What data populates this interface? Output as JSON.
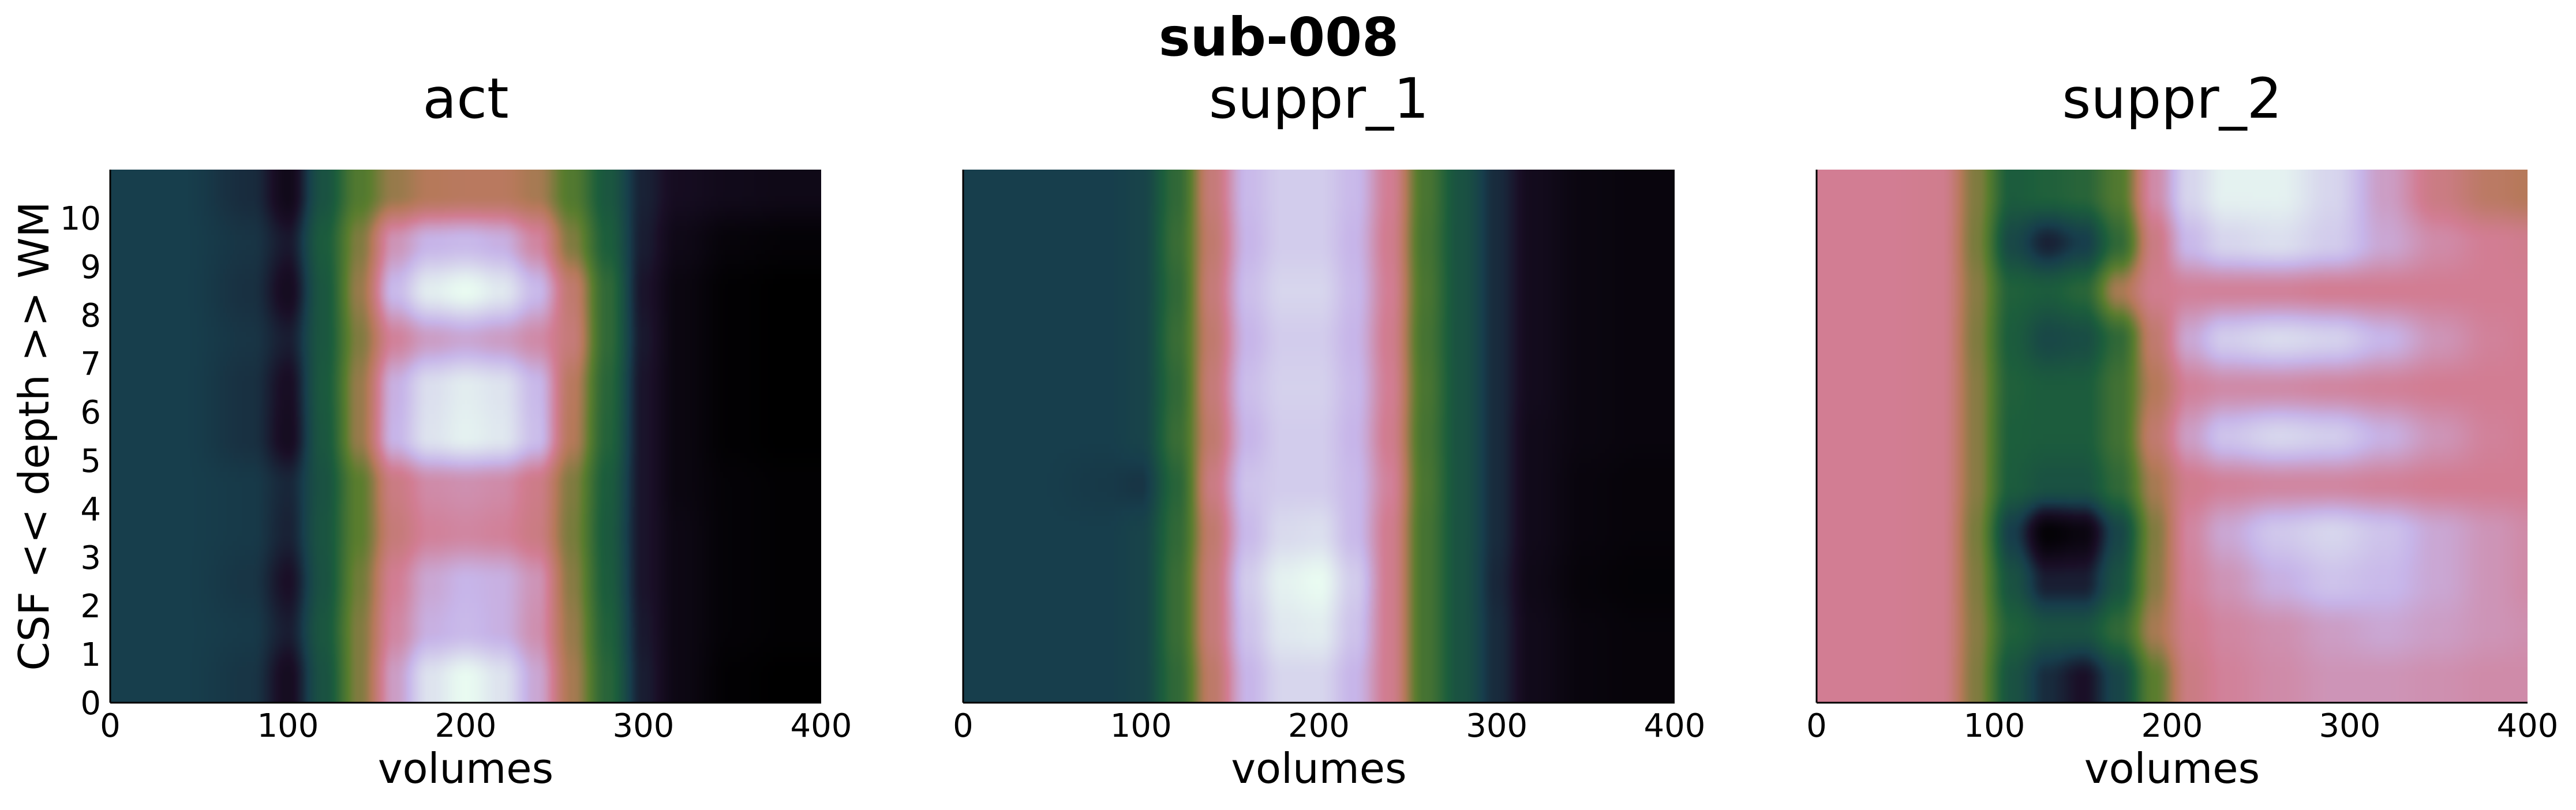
{
  "figure": {
    "suptitle": "sub-008"
  },
  "colors": {
    "background": "#ffffff",
    "axis": "#000000",
    "colormap_name": "cubehelix",
    "colormap_stops": [
      {
        "t": 0.0,
        "color": "#000000"
      },
      {
        "t": 0.12,
        "color": "#1a0f27"
      },
      {
        "t": 0.22,
        "color": "#173e4c"
      },
      {
        "t": 0.35,
        "color": "#1c5e3c"
      },
      {
        "t": 0.5,
        "color": "#5a7d2e"
      },
      {
        "t": 0.62,
        "color": "#b6795a"
      },
      {
        "t": 0.73,
        "color": "#d27d93"
      },
      {
        "t": 0.85,
        "color": "#c7b5e9"
      },
      {
        "t": 1.0,
        "color": "#e9fbf1"
      }
    ]
  },
  "chart_data": [
    {
      "type": "heatmap",
      "title": "act",
      "xlabel": "volumes",
      "ylabel": "CSF << depth >> WM",
      "xlim": [
        0,
        400
      ],
      "ylim": [
        0,
        11
      ],
      "xticks": [
        0,
        100,
        200,
        300,
        400
      ],
      "yticks": [
        0,
        1,
        2,
        3,
        4,
        5,
        6,
        7,
        8,
        9,
        10
      ],
      "x": [
        0,
        40,
        80,
        100,
        120,
        140,
        160,
        180,
        200,
        220,
        240,
        260,
        280,
        300,
        320,
        350,
        380,
        400
      ],
      "depth_rows": [
        {
          "depth": 0.5,
          "values": [
            0.22,
            0.22,
            0.2,
            0.1,
            0.3,
            0.55,
            0.8,
            0.95,
            1.0,
            0.95,
            0.82,
            0.6,
            0.38,
            0.15,
            0.06,
            0.01,
            0.0,
            0.0
          ]
        },
        {
          "depth": 1.5,
          "values": [
            0.22,
            0.22,
            0.21,
            0.15,
            0.32,
            0.55,
            0.75,
            0.84,
            0.86,
            0.84,
            0.77,
            0.58,
            0.36,
            0.14,
            0.06,
            0.02,
            0.01,
            0.01
          ]
        },
        {
          "depth": 2.5,
          "values": [
            0.22,
            0.22,
            0.2,
            0.12,
            0.3,
            0.53,
            0.73,
            0.82,
            0.85,
            0.84,
            0.78,
            0.56,
            0.34,
            0.13,
            0.06,
            0.02,
            0.01,
            0.01
          ]
        },
        {
          "depth": 3.5,
          "values": [
            0.22,
            0.22,
            0.21,
            0.16,
            0.31,
            0.5,
            0.68,
            0.74,
            0.75,
            0.74,
            0.7,
            0.54,
            0.33,
            0.13,
            0.06,
            0.02,
            0.01,
            0.01
          ]
        },
        {
          "depth": 4.5,
          "values": [
            0.22,
            0.22,
            0.21,
            0.17,
            0.3,
            0.5,
            0.7,
            0.76,
            0.77,
            0.76,
            0.71,
            0.55,
            0.34,
            0.13,
            0.05,
            0.02,
            0.01,
            0.01
          ]
        },
        {
          "depth": 5.5,
          "values": [
            0.22,
            0.22,
            0.19,
            0.1,
            0.32,
            0.58,
            0.85,
            0.95,
            0.98,
            0.96,
            0.87,
            0.62,
            0.37,
            0.13,
            0.05,
            0.01,
            0.0,
            0.0
          ]
        },
        {
          "depth": 6.5,
          "values": [
            0.22,
            0.22,
            0.19,
            0.11,
            0.33,
            0.58,
            0.84,
            0.94,
            0.97,
            0.95,
            0.86,
            0.63,
            0.38,
            0.13,
            0.05,
            0.01,
            0.0,
            0.0
          ]
        },
        {
          "depth": 7.5,
          "values": [
            0.22,
            0.22,
            0.2,
            0.15,
            0.32,
            0.55,
            0.74,
            0.8,
            0.82,
            0.8,
            0.76,
            0.68,
            0.4,
            0.14,
            0.05,
            0.01,
            0.0,
            0.0
          ]
        },
        {
          "depth": 8.5,
          "values": [
            0.22,
            0.22,
            0.19,
            0.1,
            0.32,
            0.58,
            0.86,
            0.97,
            1.0,
            0.96,
            0.86,
            0.66,
            0.4,
            0.13,
            0.05,
            0.01,
            0.0,
            0.0
          ]
        },
        {
          "depth": 9.5,
          "values": [
            0.22,
            0.22,
            0.2,
            0.14,
            0.34,
            0.55,
            0.78,
            0.85,
            0.86,
            0.84,
            0.75,
            0.55,
            0.35,
            0.15,
            0.07,
            0.03,
            0.02,
            0.02
          ]
        },
        {
          "depth": 10.5,
          "values": [
            0.22,
            0.22,
            0.18,
            0.08,
            0.3,
            0.48,
            0.58,
            0.62,
            0.63,
            0.63,
            0.6,
            0.48,
            0.32,
            0.16,
            0.1,
            0.08,
            0.07,
            0.07
          ]
        }
      ]
    },
    {
      "type": "heatmap",
      "title": "suppr_1",
      "xlabel": "volumes",
      "ylabel": "",
      "xlim": [
        0,
        400
      ],
      "ylim": [
        0,
        11
      ],
      "xticks": [
        0,
        100,
        200,
        300,
        400
      ],
      "yticks": [],
      "x": [
        0,
        40,
        80,
        100,
        120,
        140,
        160,
        180,
        200,
        220,
        240,
        260,
        280,
        300,
        320,
        350,
        380,
        400
      ],
      "depth_rows": [
        {
          "depth": 0.5,
          "values": [
            0.22,
            0.22,
            0.22,
            0.24,
            0.4,
            0.65,
            0.85,
            0.92,
            0.92,
            0.85,
            0.72,
            0.45,
            0.3,
            0.18,
            0.08,
            0.04,
            0.03,
            0.03
          ]
        },
        {
          "depth": 1.5,
          "values": [
            0.22,
            0.22,
            0.22,
            0.24,
            0.42,
            0.68,
            0.88,
            0.96,
            0.97,
            0.88,
            0.72,
            0.45,
            0.3,
            0.18,
            0.08,
            0.04,
            0.03,
            0.03
          ]
        },
        {
          "depth": 2.5,
          "values": [
            0.22,
            0.22,
            0.22,
            0.24,
            0.42,
            0.68,
            0.9,
            0.98,
            1.0,
            0.9,
            0.72,
            0.45,
            0.3,
            0.17,
            0.07,
            0.03,
            0.02,
            0.02
          ]
        },
        {
          "depth": 3.5,
          "values": [
            0.22,
            0.22,
            0.22,
            0.24,
            0.4,
            0.66,
            0.86,
            0.93,
            0.94,
            0.86,
            0.72,
            0.45,
            0.3,
            0.18,
            0.08,
            0.04,
            0.03,
            0.03
          ]
        },
        {
          "depth": 4.5,
          "values": [
            0.22,
            0.22,
            0.21,
            0.2,
            0.38,
            0.7,
            0.88,
            0.9,
            0.9,
            0.86,
            0.74,
            0.46,
            0.3,
            0.18,
            0.08,
            0.04,
            0.03,
            0.03
          ]
        },
        {
          "depth": 5.5,
          "values": [
            0.22,
            0.22,
            0.22,
            0.24,
            0.42,
            0.66,
            0.85,
            0.9,
            0.9,
            0.85,
            0.72,
            0.45,
            0.3,
            0.18,
            0.08,
            0.05,
            0.04,
            0.04
          ]
        },
        {
          "depth": 6.5,
          "values": [
            0.22,
            0.22,
            0.22,
            0.24,
            0.4,
            0.68,
            0.87,
            0.91,
            0.91,
            0.86,
            0.73,
            0.46,
            0.3,
            0.18,
            0.09,
            0.05,
            0.04,
            0.04
          ]
        },
        {
          "depth": 7.5,
          "values": [
            0.22,
            0.22,
            0.22,
            0.24,
            0.42,
            0.66,
            0.85,
            0.9,
            0.9,
            0.85,
            0.72,
            0.45,
            0.3,
            0.18,
            0.09,
            0.05,
            0.04,
            0.04
          ]
        },
        {
          "depth": 8.5,
          "values": [
            0.22,
            0.22,
            0.22,
            0.24,
            0.4,
            0.68,
            0.87,
            0.92,
            0.92,
            0.86,
            0.73,
            0.46,
            0.3,
            0.18,
            0.09,
            0.05,
            0.04,
            0.04
          ]
        },
        {
          "depth": 9.5,
          "values": [
            0.22,
            0.22,
            0.22,
            0.24,
            0.42,
            0.66,
            0.85,
            0.9,
            0.9,
            0.85,
            0.72,
            0.45,
            0.3,
            0.18,
            0.09,
            0.05,
            0.04,
            0.04
          ]
        },
        {
          "depth": 10.5,
          "values": [
            0.22,
            0.22,
            0.22,
            0.24,
            0.4,
            0.68,
            0.86,
            0.9,
            0.9,
            0.86,
            0.73,
            0.46,
            0.3,
            0.18,
            0.09,
            0.05,
            0.04,
            0.04
          ]
        }
      ]
    },
    {
      "type": "heatmap",
      "title": "suppr_2",
      "xlabel": "volumes",
      "ylabel": "",
      "xlim": [
        0,
        400
      ],
      "ylim": [
        0,
        11
      ],
      "xticks": [
        0,
        100,
        200,
        300,
        400
      ],
      "yticks": [],
      "x": [
        0,
        40,
        70,
        90,
        110,
        130,
        150,
        170,
        190,
        210,
        230,
        260,
        290,
        320,
        350,
        380,
        400
      ],
      "depth_rows": [
        {
          "depth": 0.5,
          "values": [
            0.73,
            0.73,
            0.72,
            0.55,
            0.3,
            0.18,
            0.12,
            0.25,
            0.5,
            0.7,
            0.74,
            0.76,
            0.78,
            0.78,
            0.77,
            0.76,
            0.76
          ]
        },
        {
          "depth": 1.5,
          "values": [
            0.73,
            0.73,
            0.72,
            0.56,
            0.36,
            0.3,
            0.3,
            0.4,
            0.6,
            0.72,
            0.75,
            0.77,
            0.8,
            0.82,
            0.8,
            0.78,
            0.77
          ]
        },
        {
          "depth": 2.5,
          "values": [
            0.73,
            0.73,
            0.72,
            0.55,
            0.3,
            0.15,
            0.15,
            0.3,
            0.56,
            0.74,
            0.78,
            0.84,
            0.88,
            0.86,
            0.82,
            0.78,
            0.76
          ]
        },
        {
          "depth": 3.5,
          "values": [
            0.73,
            0.73,
            0.72,
            0.54,
            0.22,
            0.02,
            0.05,
            0.25,
            0.55,
            0.75,
            0.82,
            0.89,
            0.92,
            0.88,
            0.82,
            0.78,
            0.76
          ]
        },
        {
          "depth": 4.5,
          "values": [
            0.73,
            0.73,
            0.72,
            0.56,
            0.34,
            0.3,
            0.3,
            0.4,
            0.6,
            0.72,
            0.74,
            0.75,
            0.75,
            0.74,
            0.73,
            0.73,
            0.73
          ]
        },
        {
          "depth": 5.5,
          "values": [
            0.73,
            0.73,
            0.72,
            0.56,
            0.35,
            0.34,
            0.34,
            0.44,
            0.66,
            0.8,
            0.88,
            0.92,
            0.9,
            0.84,
            0.78,
            0.74,
            0.73
          ]
        },
        {
          "depth": 6.5,
          "values": [
            0.73,
            0.73,
            0.72,
            0.56,
            0.36,
            0.34,
            0.34,
            0.44,
            0.62,
            0.74,
            0.76,
            0.76,
            0.75,
            0.74,
            0.73,
            0.73,
            0.73
          ]
        },
        {
          "depth": 7.5,
          "values": [
            0.73,
            0.73,
            0.72,
            0.55,
            0.34,
            0.26,
            0.28,
            0.4,
            0.66,
            0.82,
            0.9,
            0.93,
            0.91,
            0.85,
            0.78,
            0.74,
            0.73
          ]
        },
        {
          "depth": 8.5,
          "values": [
            0.73,
            0.73,
            0.72,
            0.56,
            0.36,
            0.34,
            0.38,
            0.6,
            0.72,
            0.74,
            0.74,
            0.74,
            0.73,
            0.73,
            0.73,
            0.73,
            0.73
          ]
        },
        {
          "depth": 9.5,
          "values": [
            0.73,
            0.73,
            0.72,
            0.54,
            0.26,
            0.16,
            0.22,
            0.4,
            0.7,
            0.86,
            0.92,
            0.94,
            0.9,
            0.82,
            0.76,
            0.73,
            0.72
          ]
        },
        {
          "depth": 10.5,
          "values": [
            0.73,
            0.73,
            0.72,
            0.55,
            0.34,
            0.36,
            0.38,
            0.48,
            0.76,
            0.92,
            0.98,
            0.98,
            0.92,
            0.8,
            0.7,
            0.64,
            0.62
          ]
        }
      ]
    }
  ]
}
